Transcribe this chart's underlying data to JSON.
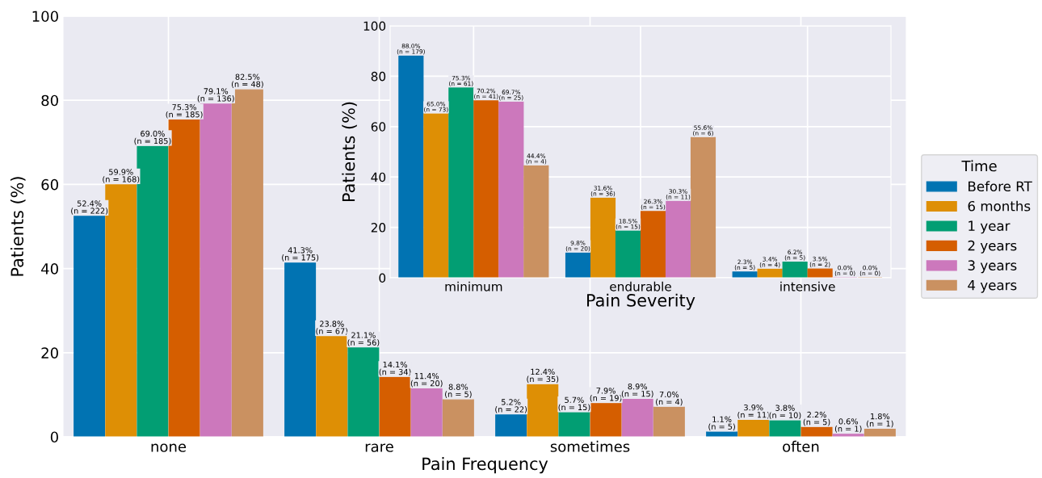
{
  "chart_data": [
    {
      "type": "bar",
      "xlabel": "Pain Frequency",
      "ylabel": "Patients (%)",
      "legend_title": "Time",
      "legend": "right",
      "grid": true,
      "ylim": [
        0,
        100
      ],
      "yticks": [
        0,
        20,
        40,
        60,
        80,
        100
      ],
      "categories": [
        "none",
        "rare",
        "sometimes",
        "often"
      ],
      "series": [
        {
          "name": "Before RT",
          "color": "#0173b2",
          "values": [
            52.4,
            41.3,
            5.2,
            1.1
          ],
          "value_labels": [
            "52.4%\n(n = 222)",
            "41.3%\n(n = 175)",
            "5.2%\n(n = 22)",
            "1.1%\n(n = 5)"
          ]
        },
        {
          "name": "6 months",
          "color": "#de8f05",
          "values": [
            59.9,
            23.8,
            12.4,
            3.9
          ],
          "value_labels": [
            "59.9%\n(n = 168)",
            "23.8%\n(n = 67)",
            "12.4%\n(n = 35)",
            "3.9%\n(n = 11)"
          ]
        },
        {
          "name": "1 year",
          "color": "#029e73",
          "values": [
            69.0,
            21.1,
            5.7,
            3.8
          ],
          "value_labels": [
            "69.0%\n(n = 185)",
            "21.1%\n(n = 56)",
            "5.7%\n(n = 15)",
            "3.8%\n(n = 10)"
          ]
        },
        {
          "name": "2 years",
          "color": "#d55e00",
          "values": [
            75.3,
            14.1,
            7.9,
            2.2
          ],
          "value_labels": [
            "75.3%\n(n = 185)",
            "14.1%\n(n = 34)",
            "7.9%\n(n = 19)",
            "2.2%\n(n = 5)"
          ]
        },
        {
          "name": "3 years",
          "color": "#cc78bc",
          "values": [
            79.1,
            11.4,
            8.9,
            0.6
          ],
          "value_labels": [
            "79.1%\n(n = 136)",
            "11.4%\n(n = 20)",
            "8.9%\n(n = 15)",
            "0.6%\n(n = 1)"
          ]
        },
        {
          "name": "4 years",
          "color": "#ca9161",
          "values": [
            82.5,
            8.8,
            7.0,
            1.8
          ],
          "value_labels": [
            "82.5%\n(n = 48)",
            "8.8%\n(n = 5)",
            "7.0%\n(n = 4)",
            "1.8%\n(n = 1)"
          ]
        }
      ]
    },
    {
      "type": "bar",
      "xlabel": "Pain Severity",
      "ylabel": "Patients (%)",
      "grid": true,
      "ylim": [
        0,
        100
      ],
      "yticks": [
        0,
        20,
        40,
        60,
        80,
        100
      ],
      "categories": [
        "minimum",
        "endurable",
        "intensive"
      ],
      "series": [
        {
          "color": "#0173b2",
          "values": [
            88.0,
            9.8,
            2.3
          ],
          "value_labels": [
            "88.0%\n(n = 179)",
            "9.8%\n(n = 20)",
            "2.3%\n(n = 5)"
          ]
        },
        {
          "color": "#de8f05",
          "values": [
            65.0,
            31.6,
            3.4
          ],
          "value_labels": [
            "65.0%\n(n = 73)",
            "31.6%\n(n = 36)",
            "3.4%\n(n = 4)"
          ]
        },
        {
          "color": "#029e73",
          "values": [
            75.3,
            18.5,
            6.2
          ],
          "value_labels": [
            "75.3%\n(n = 61)",
            "18.5%\n(n = 15)",
            "6.2%\n(n = 5)"
          ]
        },
        {
          "color": "#d55e00",
          "values": [
            70.2,
            26.3,
            3.5
          ],
          "value_labels": [
            "70.2%\n(n = 41)",
            "26.3%\n(n = 15)",
            "3.5%\n(n = 2)"
          ]
        },
        {
          "color": "#cc78bc",
          "values": [
            69.7,
            30.3,
            0.0
          ],
          "value_labels": [
            "69.7%\n(n = 25)",
            "30.3%\n(n = 11)",
            "0.0%\n(n = 0)"
          ]
        },
        {
          "color": "#ca9161",
          "values": [
            44.4,
            55.6,
            0.0
          ],
          "value_labels": [
            "44.4%\n(n = 4)",
            "55.6%\n(n = 6)",
            "0.0%\n(n = 0)"
          ]
        }
      ]
    }
  ]
}
